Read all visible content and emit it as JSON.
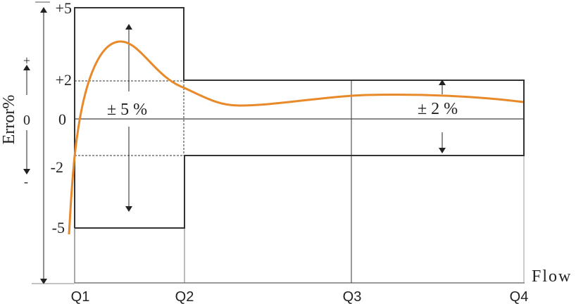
{
  "axis": {
    "y_label": "Error%",
    "x_label": "Flow",
    "y_ticks": [
      "+5",
      "+2",
      "0",
      "-2",
      "-5"
    ],
    "x_ticks": [
      "Q1",
      "Q2",
      "Q3",
      "Q4"
    ],
    "sign_plus": "+",
    "sign_zero": "0",
    "sign_minus": "-"
  },
  "zones": {
    "low_flow_tolerance": "± 5 %",
    "high_flow_tolerance": "± 2 %"
  },
  "colors": {
    "curve": "#E8892A",
    "lines": "#333333"
  }
}
